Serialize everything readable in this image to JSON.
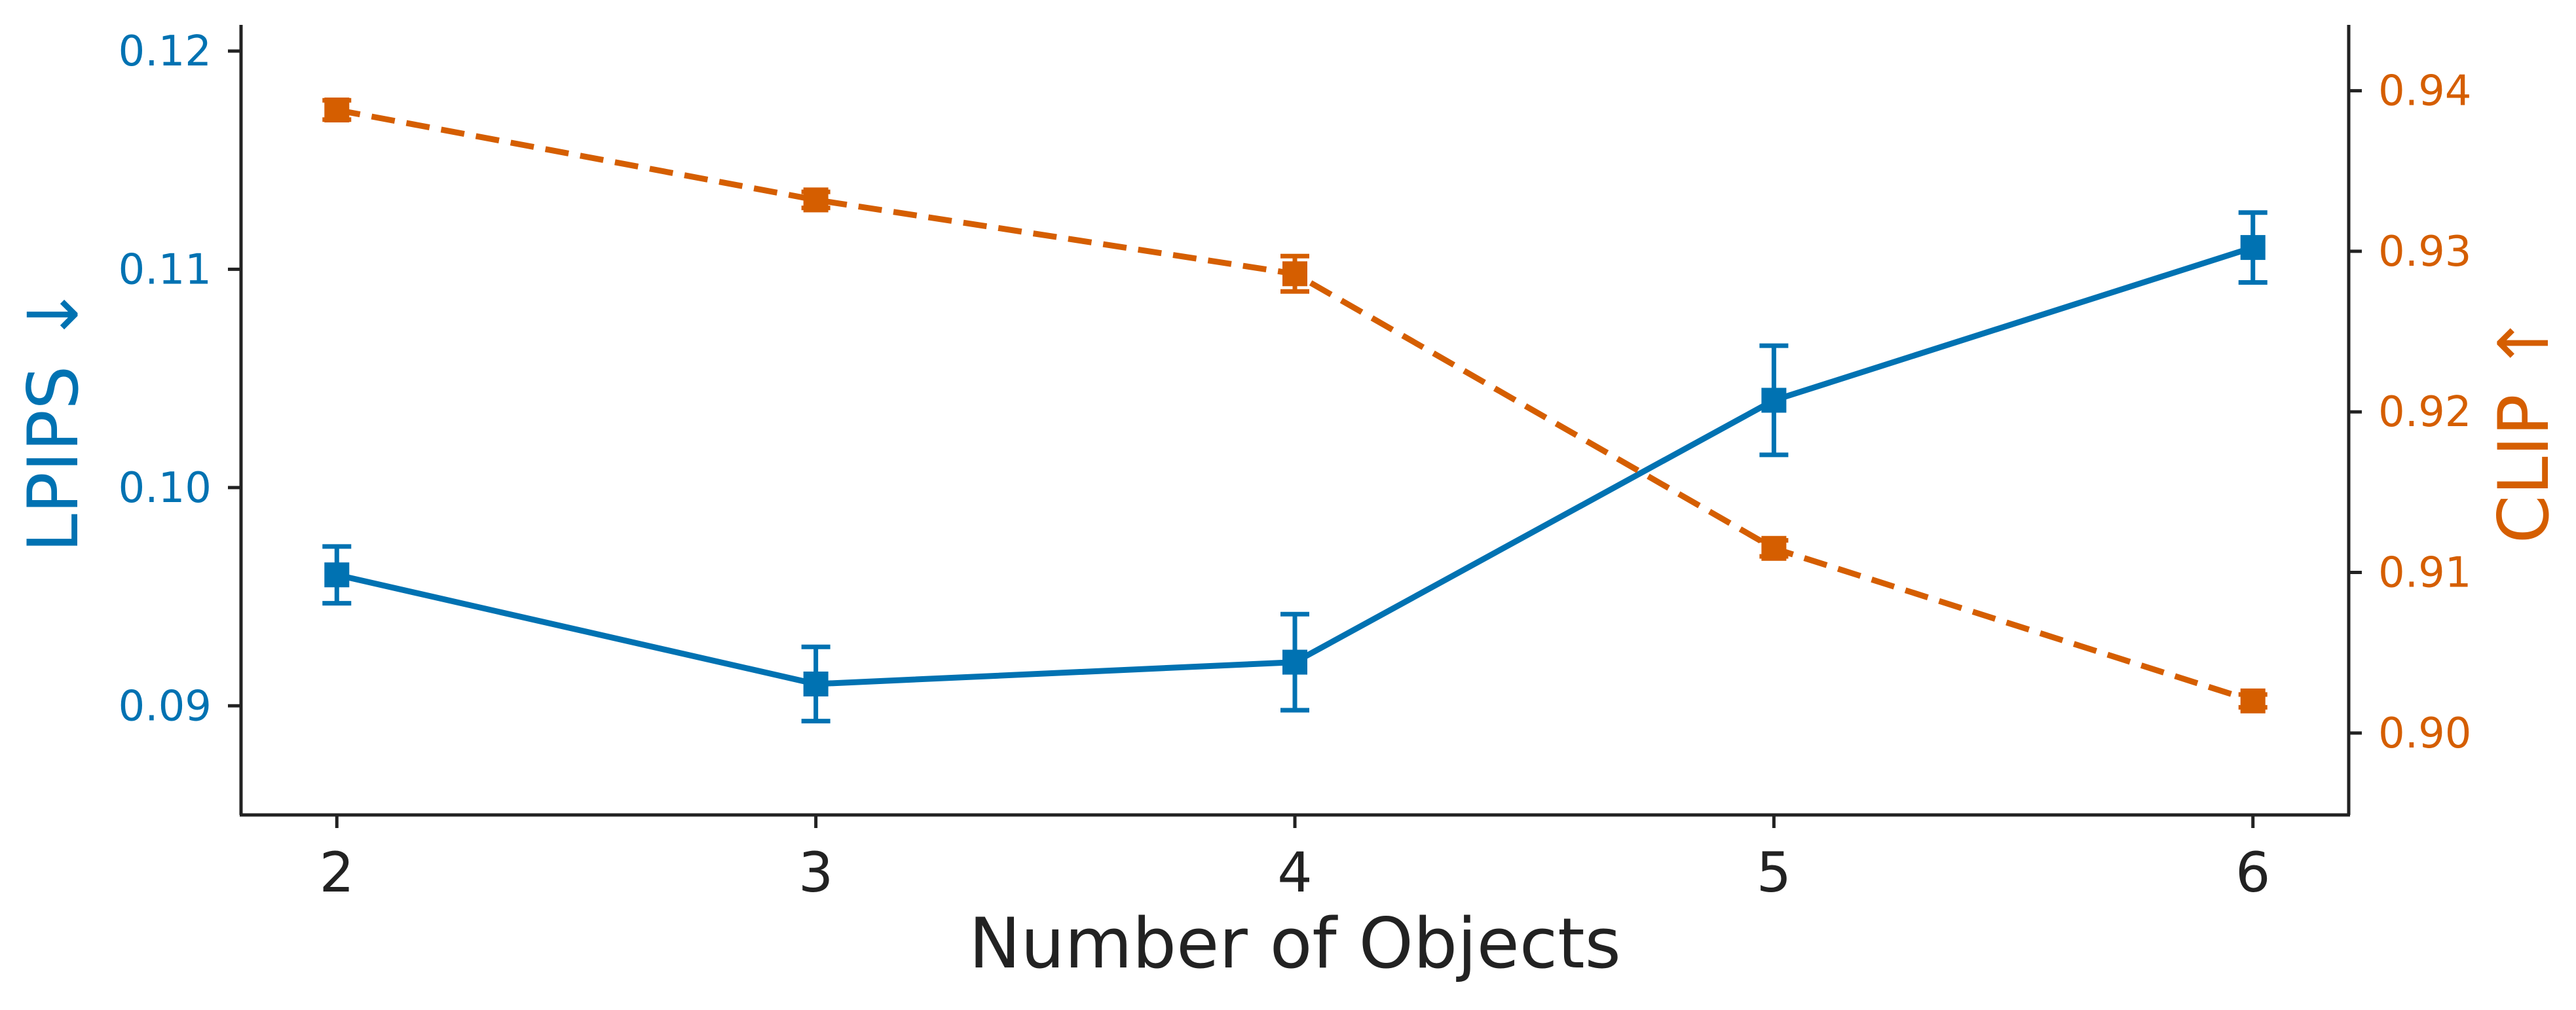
{
  "chart_data": {
    "type": "line",
    "x": [
      2,
      3,
      4,
      5,
      6
    ],
    "xlabel": "Number of Objects",
    "xticks": [
      "2",
      "3",
      "4",
      "5",
      "6"
    ],
    "xlim": [
      1.8,
      6.2
    ],
    "grid": false,
    "series": [
      {
        "name": "LPIPS ↓",
        "axis": "left",
        "color": "#0072B2",
        "line_style": "solid",
        "marker": "square",
        "values": [
          0.096,
          0.091,
          0.092,
          0.104,
          0.111
        ],
        "error": [
          0.0013,
          0.0017,
          0.0022,
          0.0025,
          0.0016
        ]
      },
      {
        "name": "CLIP ↑",
        "axis": "right",
        "color": "#D55E00",
        "line_style": "dashed",
        "marker": "square",
        "values": [
          0.9388,
          0.9332,
          0.9286,
          0.9115,
          0.902
        ],
        "error": [
          0.0006,
          0.0005,
          0.0011,
          0.0005,
          0.0004
        ]
      }
    ],
    "y_left": {
      "label": "LPIPS ↓",
      "color": "#0072B2",
      "ylim": [
        0.085,
        0.1212
      ],
      "ticks": [
        "0.09",
        "0.10",
        "0.11",
        "0.12"
      ]
    },
    "y_right": {
      "label": "CLIP ↑",
      "color": "#D55E00",
      "ylim": [
        0.8949,
        0.9441
      ],
      "ticks": [
        "0.90",
        "0.91",
        "0.92",
        "0.93",
        "0.94"
      ]
    }
  }
}
